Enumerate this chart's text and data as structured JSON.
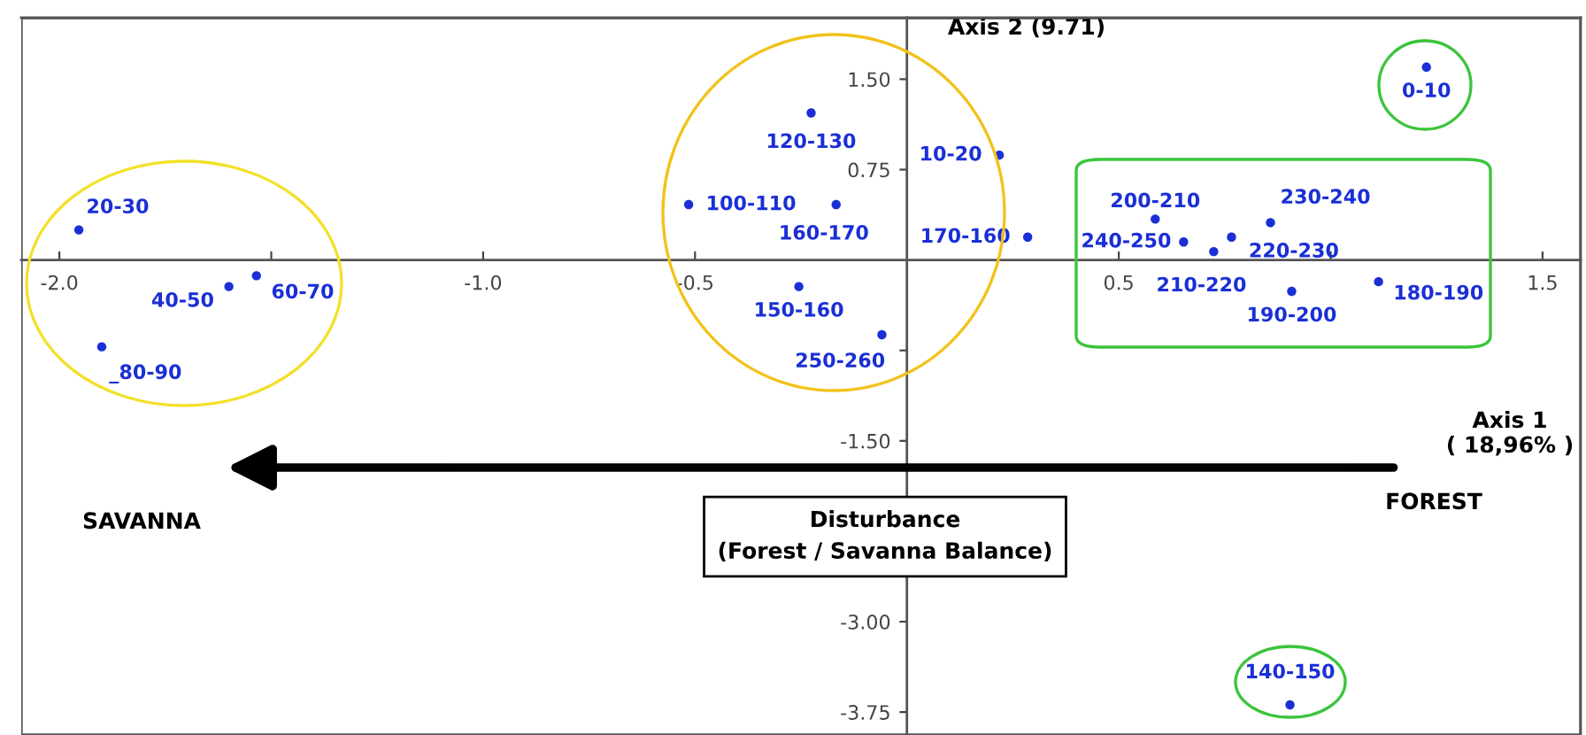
{
  "chart_data": {
    "type": "scatter",
    "xlabel": "Axis 1\n( 18,96% )",
    "ylabel": "Axis 2 (9.71)",
    "x": [
      -1.954,
      -1.6,
      -1.535,
      -1.9,
      -0.515,
      -0.226,
      -0.167,
      -0.255,
      -0.059,
      0.218,
      0.285,
      1.226,
      0.586,
      0.653,
      0.724,
      0.766,
      0.858,
      0.908,
      1.113,
      0.904
    ],
    "values": [
      0.25,
      -0.22,
      -0.13,
      -0.72,
      0.46,
      1.22,
      0.46,
      -0.22,
      -0.62,
      0.87,
      0.19,
      1.6,
      0.34,
      0.15,
      0.07,
      0.19,
      0.31,
      -0.26,
      -0.18,
      -3.69
    ],
    "value_labels": [
      "20-30",
      "40-50",
      "60-70",
      "_80-90",
      "100-110",
      "120-130",
      "160-170",
      "150-160",
      "250-260",
      "10-20",
      "170-160",
      "0-10",
      "200-210",
      "240-250",
      "210-220",
      "220-230",
      "230-240",
      "190-200",
      "180-190",
      "140-150"
    ],
    "color": "#1a2fd6",
    "marker": "circle",
    "grid": false,
    "xlim": [
      -2.09,
      1.59
    ],
    "ylim": [
      -3.94,
      2.01
    ],
    "xticks": [
      {
        "value": -2.0,
        "label": "-2.0"
      },
      {
        "value": -1.5,
        "label": null
      },
      {
        "value": -1.0,
        "label": "-1.0"
      },
      -0.5,
      0.5,
      {
        "value": 1.0,
        "label": null
      },
      1.5
    ],
    "yticks": [
      {
        "value": 1.5,
        "label": "1.50"
      },
      0.75,
      {
        "value": -0.75,
        "label": null
      },
      {
        "value": -1.5,
        "label": "-1.50"
      },
      {
        "value": -2.25,
        "label": null
      },
      {
        "value": -3.0,
        "label": "-3.00"
      },
      -3.75
    ],
    "annotations": [
      "SAVANNA",
      "FOREST",
      "Disturbance\n(Forest / Savanna Balance)"
    ]
  }
}
